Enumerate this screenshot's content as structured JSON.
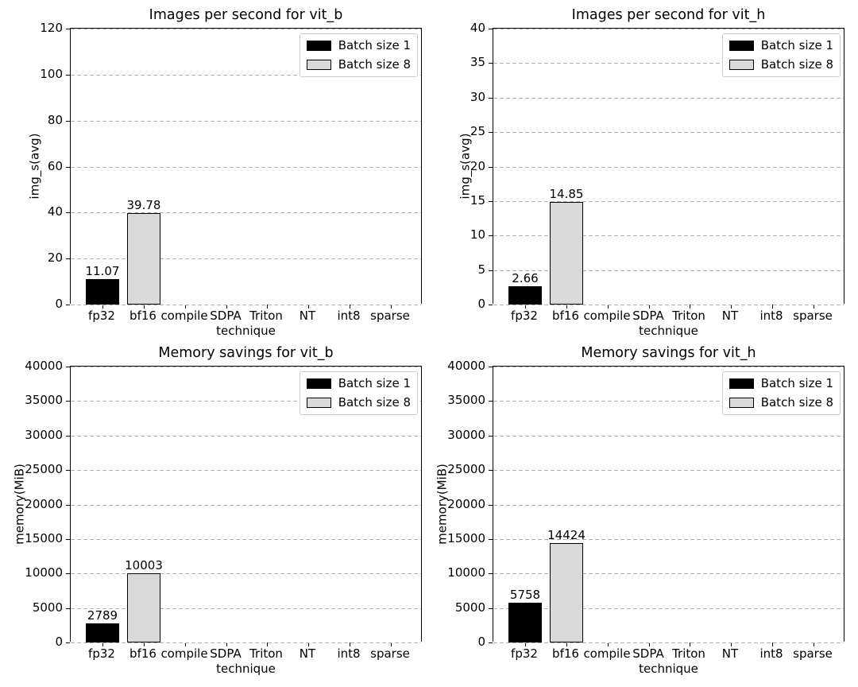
{
  "page": {
    "background": "#ffffff"
  },
  "style": {
    "grid_color": "#b0b0b0",
    "spine_color": "#000000",
    "bar_edge_color": "#000000",
    "legend_border_color": "#cccccc",
    "batch1_color": "#000000",
    "batch8_color": "#d9d9d9"
  },
  "chart_data": [
    {
      "id": "ips-vit_b",
      "type": "bar",
      "title": "Images per second for vit_b",
      "xlabel": "technique",
      "ylabel": "img_s(avg)",
      "ylim": [
        0,
        120
      ],
      "yticks": [
        0,
        20,
        40,
        60,
        80,
        100,
        120
      ],
      "ytick_labels": [
        "0",
        "20",
        "40",
        "60",
        "80",
        "100",
        "120"
      ],
      "grid": true,
      "legend_position": "upper right",
      "categories": [
        "fp32",
        "bf16",
        "compile",
        "SDPA",
        "Triton",
        "NT",
        "int8",
        "sparse"
      ],
      "series": [
        {
          "name": "Batch size 1",
          "color": "#000000",
          "values": [
            11.07,
            null,
            null,
            null,
            null,
            null,
            null,
            null
          ],
          "labels": [
            "11.07",
            null,
            null,
            null,
            null,
            null,
            null,
            null
          ]
        },
        {
          "name": "Batch size 8",
          "color": "#d9d9d9",
          "values": [
            null,
            39.78,
            null,
            null,
            null,
            null,
            null,
            null
          ],
          "labels": [
            null,
            "39.78",
            null,
            null,
            null,
            null,
            null,
            null
          ]
        }
      ]
    },
    {
      "id": "ips-vit_h",
      "type": "bar",
      "title": "Images per second for vit_h",
      "xlabel": "technique",
      "ylabel": "img_s(avg)",
      "ylim": [
        0,
        40
      ],
      "yticks": [
        0,
        5,
        10,
        15,
        20,
        25,
        30,
        35,
        40
      ],
      "ytick_labels": [
        "0",
        "5",
        "10",
        "15",
        "20",
        "25",
        "30",
        "35",
        "40"
      ],
      "grid": true,
      "legend_position": "upper right",
      "categories": [
        "fp32",
        "bf16",
        "compile",
        "SDPA",
        "Triton",
        "NT",
        "int8",
        "sparse"
      ],
      "series": [
        {
          "name": "Batch size 1",
          "color": "#000000",
          "values": [
            2.66,
            null,
            null,
            null,
            null,
            null,
            null,
            null
          ],
          "labels": [
            "2.66",
            null,
            null,
            null,
            null,
            null,
            null,
            null
          ]
        },
        {
          "name": "Batch size 8",
          "color": "#d9d9d9",
          "values": [
            null,
            14.85,
            null,
            null,
            null,
            null,
            null,
            null
          ],
          "labels": [
            null,
            "14.85",
            null,
            null,
            null,
            null,
            null,
            null
          ]
        }
      ]
    },
    {
      "id": "mem-vit_b",
      "type": "bar",
      "title": "Memory savings for vit_b",
      "xlabel": "technique",
      "ylabel": "memory(MiB)",
      "ylim": [
        0,
        40000
      ],
      "yticks": [
        0,
        5000,
        10000,
        15000,
        20000,
        25000,
        30000,
        35000,
        40000
      ],
      "ytick_labels": [
        "0",
        "5000",
        "10000",
        "15000",
        "20000",
        "25000",
        "30000",
        "35000",
        "40000"
      ],
      "grid": true,
      "legend_position": "upper right",
      "categories": [
        "fp32",
        "bf16",
        "compile",
        "SDPA",
        "Triton",
        "NT",
        "int8",
        "sparse"
      ],
      "series": [
        {
          "name": "Batch size 1",
          "color": "#000000",
          "values": [
            2789,
            null,
            null,
            null,
            null,
            null,
            null,
            null
          ],
          "labels": [
            "2789",
            null,
            null,
            null,
            null,
            null,
            null,
            null
          ]
        },
        {
          "name": "Batch size 8",
          "color": "#d9d9d9",
          "values": [
            null,
            10003,
            null,
            null,
            null,
            null,
            null,
            null
          ],
          "labels": [
            null,
            "10003",
            null,
            null,
            null,
            null,
            null,
            null
          ]
        }
      ]
    },
    {
      "id": "mem-vit_h",
      "type": "bar",
      "title": "Memory savings for vit_h",
      "xlabel": "technique",
      "ylabel": "memory(MiB)",
      "ylim": [
        0,
        40000
      ],
      "yticks": [
        0,
        5000,
        10000,
        15000,
        20000,
        25000,
        30000,
        35000,
        40000
      ],
      "ytick_labels": [
        "0",
        "5000",
        "10000",
        "15000",
        "20000",
        "25000",
        "30000",
        "35000",
        "40000"
      ],
      "grid": true,
      "legend_position": "upper right",
      "categories": [
        "fp32",
        "bf16",
        "compile",
        "SDPA",
        "Triton",
        "NT",
        "int8",
        "sparse"
      ],
      "series": [
        {
          "name": "Batch size 1",
          "color": "#000000",
          "values": [
            5758,
            null,
            null,
            null,
            null,
            null,
            null,
            null
          ],
          "labels": [
            "5758",
            null,
            null,
            null,
            null,
            null,
            null,
            null
          ]
        },
        {
          "name": "Batch size 8",
          "color": "#d9d9d9",
          "values": [
            null,
            14424,
            null,
            null,
            null,
            null,
            null,
            null
          ],
          "labels": [
            null,
            "14424",
            null,
            null,
            null,
            null,
            null,
            null
          ]
        }
      ]
    }
  ]
}
